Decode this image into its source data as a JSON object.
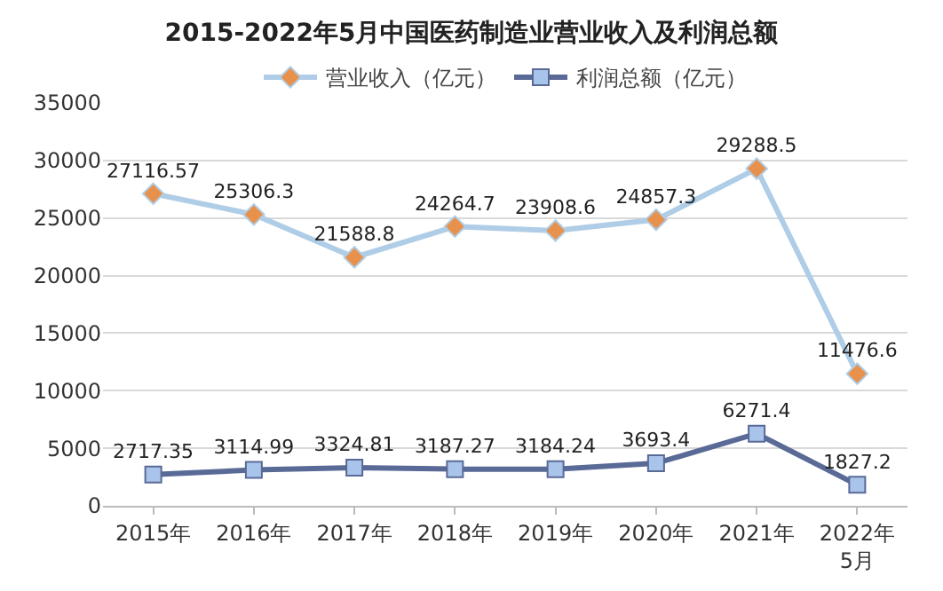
{
  "chart_data": {
    "type": "line",
    "title": "2015-2022年5月中国医药制造业营业收入及利润总额",
    "categories": [
      "2015年",
      "2016年",
      "2017年",
      "2018年",
      "2019年",
      "2020年",
      "2021年",
      "2022年\n5月"
    ],
    "series": [
      {
        "name": "营业收入（亿元）",
        "color": "#afcde6",
        "marker": "diamond",
        "values": [
          27116.57,
          25306.3,
          21588.8,
          24264.7,
          23908.6,
          24857.3,
          29288.5,
          11476.6
        ]
      },
      {
        "name": "利润总额（亿元）",
        "color": "#5a6a96",
        "marker": "square",
        "values": [
          2717.35,
          3114.99,
          3324.81,
          3187.27,
          3184.24,
          3693.4,
          6271.4,
          1827.2
        ]
      }
    ],
    "ylim": [
      0,
      35000
    ],
    "yticks": [
      0,
      5000,
      10000,
      15000,
      20000,
      25000,
      30000,
      35000
    ],
    "grid": "y",
    "legend": "top",
    "data_labels": true
  }
}
